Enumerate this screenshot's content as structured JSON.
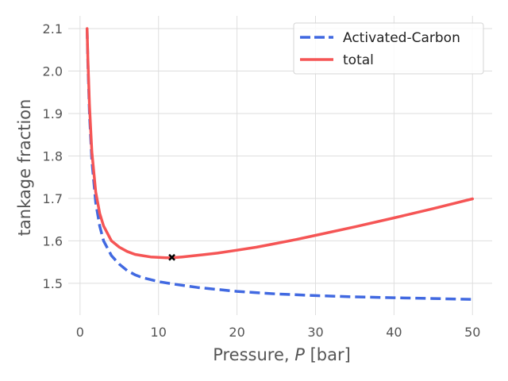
{
  "chart_data": {
    "type": "line",
    "title": "",
    "xlabel_prefix": "Pressure, ",
    "xlabel_var": "P",
    "xlabel_suffix": " [bar]",
    "ylabel": "tankage fraction",
    "xlim": [
      -1.5,
      52.5
    ],
    "ylim": [
      1.425,
      2.13
    ],
    "grid": true,
    "legend_position": "top-right",
    "x_ticks": [
      0,
      10,
      20,
      30,
      40,
      50
    ],
    "x_tick_labels": [
      "0",
      "10",
      "20",
      "30",
      "40",
      "50"
    ],
    "y_ticks": [
      1.5,
      1.6,
      1.7,
      1.8,
      1.9,
      2.0,
      2.1
    ],
    "y_tick_labels": [
      "1.5",
      "1.6",
      "1.7",
      "1.8",
      "1.9",
      "2.0",
      "2.1"
    ],
    "series": [
      {
        "name": "Activated-Carbon",
        "color": "#4169e1",
        "dash": true,
        "x": [
          0.9,
          1,
          1.2,
          1.5,
          2,
          2.5,
          3,
          4,
          5,
          6,
          7,
          8,
          10,
          12,
          15,
          20,
          25,
          30,
          35,
          40,
          45,
          50
        ],
        "y": [
          2.1,
          2.02,
          1.9,
          1.79,
          1.69,
          1.635,
          1.6,
          1.565,
          1.545,
          1.53,
          1.52,
          1.513,
          1.504,
          1.498,
          1.49,
          1.481,
          1.475,
          1.471,
          1.468,
          1.466,
          1.464,
          1.462
        ]
      },
      {
        "name": "total",
        "color": "#f55555",
        "dash": false,
        "x": [
          0.9,
          1,
          1.2,
          1.5,
          2,
          2.5,
          3,
          4,
          5,
          6,
          7,
          8,
          9,
          10,
          11,
          11.7,
          13,
          15,
          17.5,
          20,
          22.5,
          25,
          27.5,
          30,
          35,
          40,
          45,
          50
        ],
        "y": [
          2.1,
          2.03,
          1.92,
          1.81,
          1.715,
          1.665,
          1.635,
          1.6,
          1.585,
          1.575,
          1.568,
          1.565,
          1.562,
          1.561,
          1.56,
          1.56,
          1.562,
          1.566,
          1.571,
          1.578,
          1.585,
          1.594,
          1.603,
          1.613,
          1.633,
          1.654,
          1.676,
          1.699
        ]
      }
    ],
    "marker": {
      "symbol": "x",
      "x": 11.7,
      "y": 1.561,
      "color": "#000000"
    }
  }
}
